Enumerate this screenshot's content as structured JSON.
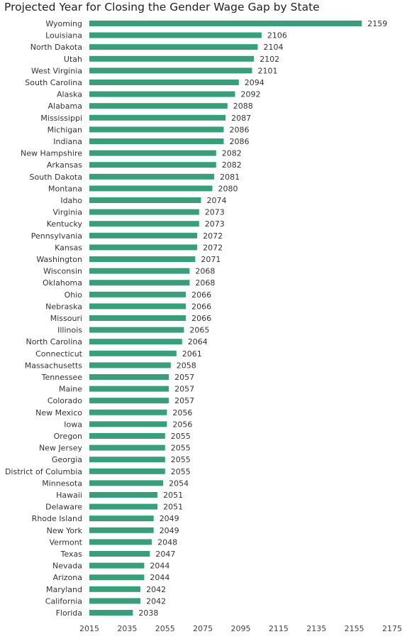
{
  "chart_data": {
    "type": "bar",
    "orientation": "horizontal",
    "title": "Projected Year for Closing the Gender Wage Gap by State",
    "xlabel": "",
    "ylabel": "",
    "xlim": [
      2015,
      2175
    ],
    "xticks": [
      2015,
      2035,
      2055,
      2075,
      2095,
      2115,
      2135,
      2155,
      2175
    ],
    "grid": false,
    "bar_color": "#3a9e7b",
    "categories": [
      "Wyoming",
      "Louisiana",
      "North Dakota",
      "Utah",
      "West Virginia",
      "South Carolina",
      "Alaska",
      "Alabama",
      "Mississippi",
      "Michigan",
      "Indiana",
      "New Hampshire",
      "Arkansas",
      "South Dakota",
      "Montana",
      "Idaho",
      "Virginia",
      "Kentucky",
      "Pennsylvania",
      "Kansas",
      "Washington",
      "Wisconsin",
      "Oklahoma",
      "Ohio",
      "Nebraska",
      "Missouri",
      "Illinois",
      "North Carolina",
      "Connecticut",
      "Massachusetts",
      "Tennessee",
      "Maine",
      "Colorado",
      "New Mexico",
      "Iowa",
      "Oregon",
      "New Jersey",
      "Georgia",
      "District of Columbia",
      "Minnesota",
      "Hawaii",
      "Delaware",
      "Rhode Island",
      "New York",
      "Vermont",
      "Texas",
      "Nevada",
      "Arizona",
      "Maryland",
      "California",
      "Florida"
    ],
    "values": [
      2159,
      2106,
      2104,
      2102,
      2101,
      2094,
      2092,
      2088,
      2087,
      2086,
      2086,
      2082,
      2082,
      2081,
      2080,
      2074,
      2073,
      2073,
      2072,
      2072,
      2071,
      2068,
      2068,
      2066,
      2066,
      2066,
      2065,
      2064,
      2061,
      2058,
      2057,
      2057,
      2057,
      2056,
      2056,
      2055,
      2055,
      2055,
      2055,
      2054,
      2051,
      2051,
      2049,
      2049,
      2048,
      2047,
      2044,
      2044,
      2042,
      2042,
      2038
    ]
  }
}
